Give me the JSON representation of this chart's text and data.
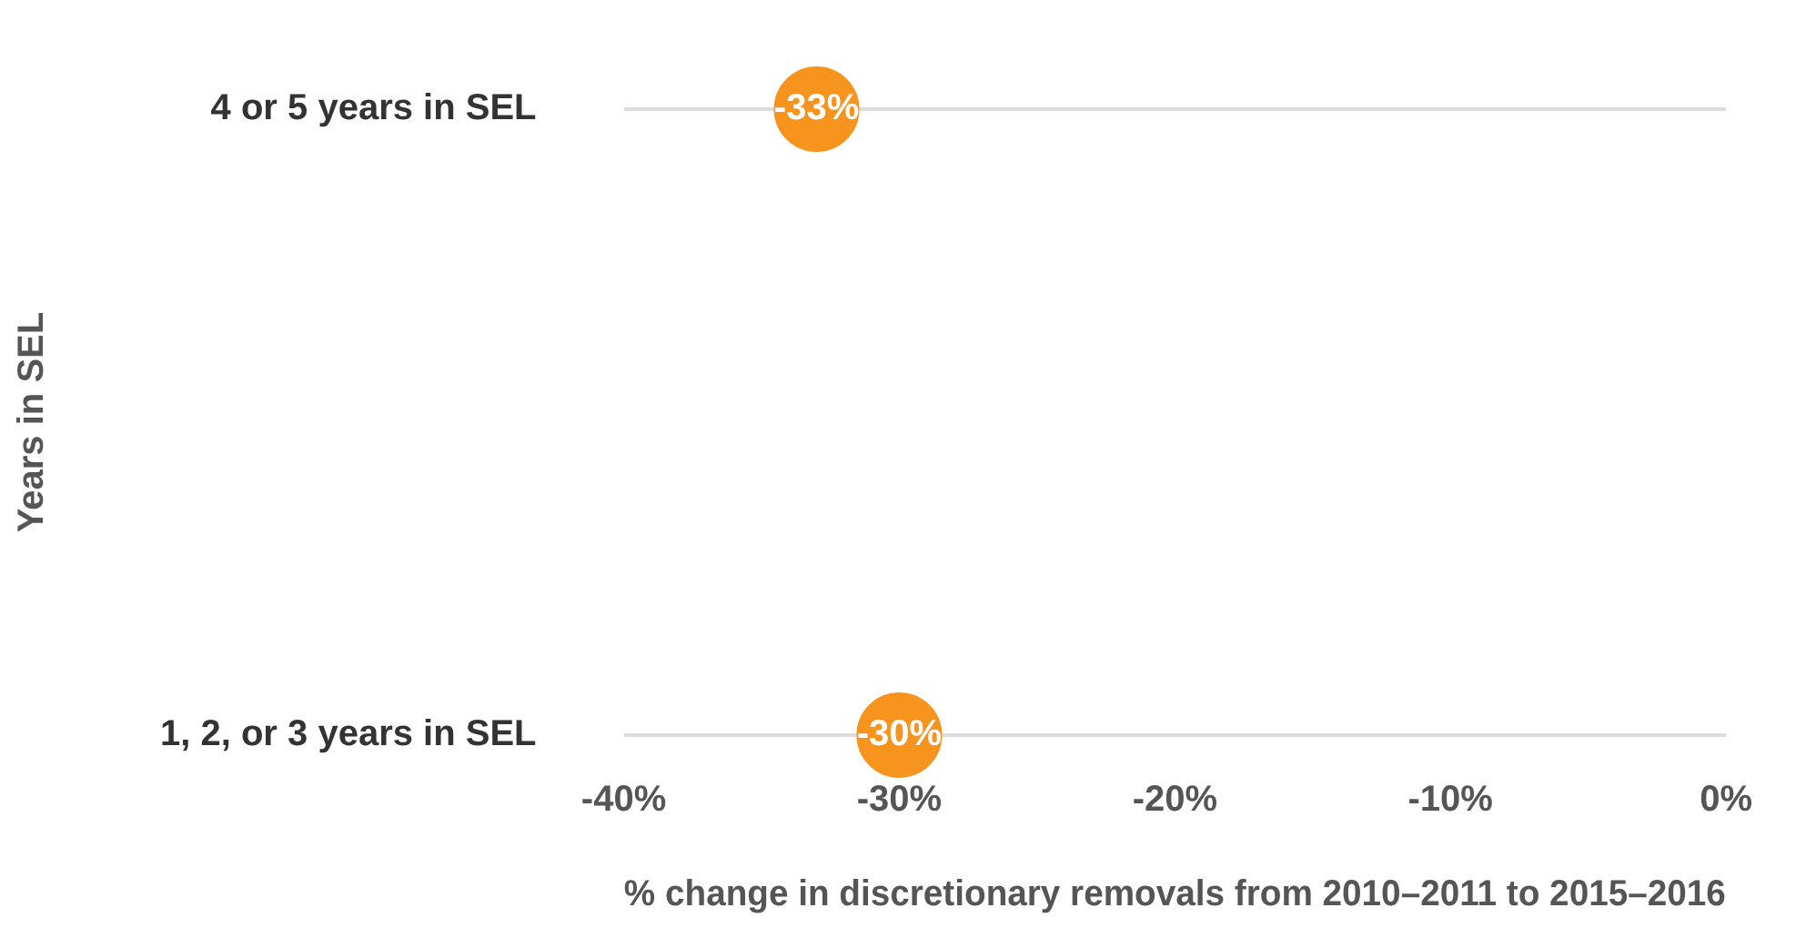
{
  "chart_data": {
    "type": "scatter",
    "orientation": "horizontal",
    "categories": [
      "4 or 5 years in SEL",
      "1, 2, or 3 years in SEL"
    ],
    "values": [
      -33,
      -30
    ],
    "value_labels": [
      "-33%",
      "-30%"
    ],
    "color": "#f7941d",
    "marker": "circle",
    "xlim": [
      -40,
      0
    ],
    "xticks": [
      {
        "value": -40,
        "label": "-40%"
      },
      {
        "value": -30,
        "label": "-30%"
      },
      {
        "value": -20,
        "label": "-20%"
      },
      {
        "value": -10,
        "label": "-10%"
      },
      {
        "value": 0,
        "label": "0%"
      }
    ],
    "xlabel": "% change in discretionary removals from 2010–2011 to 2015–2016",
    "ylabel": "Years in SEL",
    "grid": "y",
    "legend": false
  }
}
